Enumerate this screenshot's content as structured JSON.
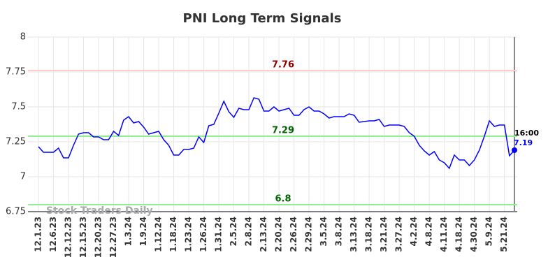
{
  "chart_data": {
    "type": "line",
    "title": "PNI Long Term Signals",
    "watermark": "Stock Traders Daily",
    "time_label": "16:00",
    "categories": [
      "12.1.23",
      null,
      null,
      "12.6.23",
      null,
      null,
      "12.12.23",
      null,
      null,
      "12.15.23",
      null,
      null,
      "12.20.23",
      null,
      null,
      "12.27.23",
      null,
      null,
      "1.3.24",
      null,
      null,
      "1.9.24",
      null,
      null,
      "1.12.24",
      null,
      null,
      "1.18.24",
      null,
      null,
      "1.23.24",
      null,
      null,
      "1.26.24",
      null,
      null,
      "1.31.24",
      null,
      null,
      "2.5.24",
      null,
      null,
      "2.8.24",
      null,
      null,
      "2.13.24",
      null,
      null,
      "2.20.24",
      null,
      null,
      "2.26.24",
      null,
      null,
      "2.29.24",
      null,
      null,
      "3.5.24",
      null,
      null,
      "3.8.24",
      null,
      null,
      "3.13.24",
      null,
      null,
      "3.18.24",
      null,
      null,
      "3.21.24",
      null,
      null,
      "3.27.24",
      null,
      null,
      "4.2.24",
      null,
      null,
      "4.8.24",
      null,
      null,
      "4.11.24",
      null,
      null,
      "4.18.24",
      null,
      null,
      "4.30.24",
      null,
      null,
      "5.9.24",
      null,
      null,
      "5.21.24",
      null,
      null
    ],
    "values": [
      7.215,
      7.175,
      7.175,
      7.175,
      7.205,
      7.135,
      7.135,
      7.225,
      7.305,
      7.315,
      7.315,
      7.285,
      7.285,
      7.265,
      7.265,
      7.325,
      7.295,
      7.405,
      7.43,
      7.385,
      7.395,
      7.355,
      7.305,
      7.315,
      7.325,
      7.265,
      7.225,
      7.155,
      7.155,
      7.195,
      7.195,
      7.205,
      7.285,
      7.245,
      7.365,
      7.375,
      7.455,
      7.54,
      7.465,
      7.425,
      7.49,
      7.48,
      7.48,
      7.565,
      7.555,
      7.47,
      7.47,
      7.5,
      7.47,
      7.48,
      7.49,
      7.44,
      7.44,
      7.48,
      7.5,
      7.47,
      7.47,
      7.45,
      7.42,
      7.43,
      7.43,
      7.43,
      7.45,
      7.44,
      7.39,
      7.395,
      7.4,
      7.4,
      7.41,
      7.36,
      7.37,
      7.37,
      7.37,
      7.36,
      7.315,
      7.29,
      7.225,
      7.185,
      7.155,
      7.18,
      7.12,
      7.1,
      7.06,
      7.155,
      7.12,
      7.12,
      7.08,
      7.12,
      7.19,
      7.29,
      7.4,
      7.36,
      7.37,
      7.37,
      7.15,
      7.19
    ],
    "color": "#0000ff",
    "ylim": [
      6.75,
      8
    ],
    "yticks": [
      6.75,
      7,
      7.25,
      7.5,
      7.75,
      8
    ],
    "grid": true,
    "hlines": [
      {
        "value": 7.76,
        "color": "#ffcccc",
        "label_color": "#8b0000"
      },
      {
        "value": 7.29,
        "color": "#90ee90",
        "label_color": "#006400"
      },
      {
        "value": 6.8,
        "color": "#90ee90",
        "label_color": "#006400"
      }
    ]
  }
}
